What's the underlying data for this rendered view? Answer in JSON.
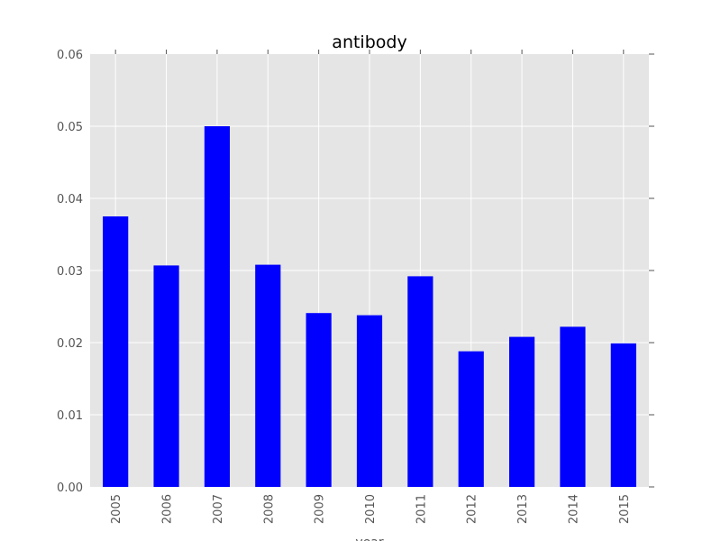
{
  "chart_data": {
    "type": "bar",
    "title": "antibody",
    "xlabel": "year",
    "ylabel": "",
    "categories": [
      "2005",
      "2006",
      "2007",
      "2008",
      "2009",
      "2010",
      "2011",
      "2012",
      "2013",
      "2014",
      "2015"
    ],
    "values": [
      0.0375,
      0.0307,
      0.05,
      0.0308,
      0.0241,
      0.0238,
      0.0292,
      0.0188,
      0.0208,
      0.0222,
      0.0199
    ],
    "ylim": [
      0,
      0.06
    ],
    "yticks": [
      "0.00",
      "0.01",
      "0.02",
      "0.03",
      "0.04",
      "0.05",
      "0.06"
    ],
    "grid": true,
    "colors": {
      "bar": "#0000ff",
      "plot_background": "#e5e5e5",
      "grid": "#ffffff",
      "tick_text": "#555555"
    }
  }
}
